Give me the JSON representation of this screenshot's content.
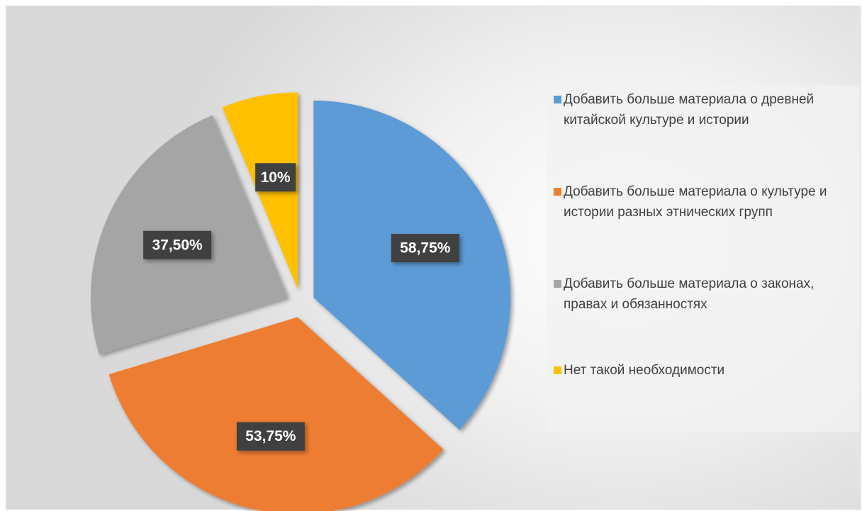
{
  "chart_data": {
    "type": "pie",
    "categories": [
      "Добавить больше материала о древней китайской культуре и истории",
      "Добавить больше материала о культуре и истории разных этнических групп",
      "Добавить больше материала о законах, правах и обязанностях",
      "Нет такой необходимости"
    ],
    "values": [
      58.75,
      53.75,
      37.5,
      10
    ],
    "value_labels": [
      "58,75%",
      "53,75%",
      "37,50%",
      "10%"
    ],
    "colors": [
      "#5b9bd5",
      "#ed7d31",
      "#a5a5a5",
      "#ffc000"
    ],
    "legend": "right"
  }
}
